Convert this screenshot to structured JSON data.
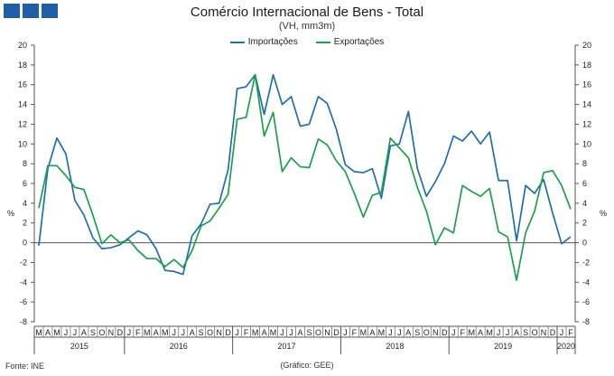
{
  "header": {
    "title": "Comércio Internacional de Bens - Total",
    "subtitle": "(VH, mm3m)"
  },
  "footer": {
    "source": "Fonte: INE",
    "credit": "(Gráfico: GEE)"
  },
  "colors": {
    "importacoes": "#1f6eb0",
    "exportacoes": "#1aa04b",
    "logo": "#1f5fa8"
  },
  "chart_data": {
    "type": "line",
    "title": "Comércio Internacional de Bens - Total",
    "subtitle": "(VH, mm3m)",
    "ylabel_left": "%",
    "ylabel_right": "%",
    "ylim": [
      -8,
      20
    ],
    "yticks": [
      -8,
      -6,
      -4,
      -2,
      0,
      2,
      4,
      6,
      8,
      10,
      12,
      14,
      16,
      18,
      20
    ],
    "grid": false,
    "legend_position": "top-center",
    "x": [
      "M",
      "A",
      "M",
      "J",
      "J",
      "A",
      "S",
      "O",
      "N",
      "D",
      "J",
      "F",
      "M",
      "A",
      "M",
      "J",
      "J",
      "A",
      "S",
      "O",
      "N",
      "D",
      "J",
      "F",
      "M",
      "A",
      "M",
      "J",
      "J",
      "A",
      "S",
      "O",
      "N",
      "D",
      "J",
      "F",
      "M",
      "A",
      "M",
      "J",
      "J",
      "A",
      "S",
      "O",
      "N",
      "D",
      "J",
      "F",
      "M",
      "A",
      "M",
      "J",
      "J",
      "A",
      "S",
      "O",
      "N",
      "D",
      "J",
      "F"
    ],
    "year_labels": [
      {
        "label": "2015",
        "start": 0,
        "end": 9
      },
      {
        "label": "2016",
        "start": 10,
        "end": 21
      },
      {
        "label": "2017",
        "start": 22,
        "end": 33
      },
      {
        "label": "2018",
        "start": 34,
        "end": 45
      },
      {
        "label": "2019",
        "start": 46,
        "end": 57
      },
      {
        "label": "2020",
        "start": 58,
        "end": 59
      }
    ],
    "series": [
      {
        "name": "Importações",
        "color": "#1f6eb0",
        "values": [
          -0.3,
          7.5,
          10.6,
          9.0,
          4.3,
          2.8,
          0.5,
          -0.6,
          -0.5,
          -0.2,
          0.5,
          1.2,
          0.8,
          -0.6,
          -2.8,
          -2.9,
          -3.2,
          0.7,
          1.9,
          3.9,
          4.0,
          7.4,
          15.6,
          15.8,
          17.0,
          13.0,
          17.0,
          14.0,
          14.8,
          11.8,
          12.0,
          14.8,
          14.1,
          11.5,
          7.9,
          7.2,
          7.1,
          7.5,
          4.5,
          9.8,
          10.0,
          13.3,
          7.5,
          4.7,
          6.2,
          8.0,
          10.8,
          10.3,
          11.3,
          10.0,
          11.2,
          6.3,
          6.3,
          0.2,
          5.8,
          5.0,
          6.4,
          3.0,
          -0.1,
          0.6
        ]
      },
      {
        "name": "Exportações",
        "color": "#1aa04b",
        "values": [
          3.5,
          7.8,
          7.8,
          6.8,
          5.6,
          5.4,
          2.8,
          -0.1,
          0.8,
          0.0,
          0.3,
          -0.8,
          -1.6,
          -1.6,
          -2.4,
          -1.7,
          -2.5,
          -0.8,
          1.7,
          2.2,
          3.5,
          4.9,
          12.5,
          12.7,
          17.0,
          10.8,
          13.2,
          7.2,
          8.6,
          7.7,
          7.6,
          10.5,
          9.9,
          8.3,
          7.2,
          5.0,
          2.6,
          4.8,
          5.1,
          10.6,
          9.6,
          8.6,
          5.6,
          3.2,
          -0.2,
          1.5,
          1.0,
          5.8,
          5.2,
          4.7,
          5.5,
          1.1,
          0.6,
          -3.8,
          1.0,
          3.2,
          7.1,
          7.3,
          5.8,
          3.4
        ]
      }
    ]
  }
}
